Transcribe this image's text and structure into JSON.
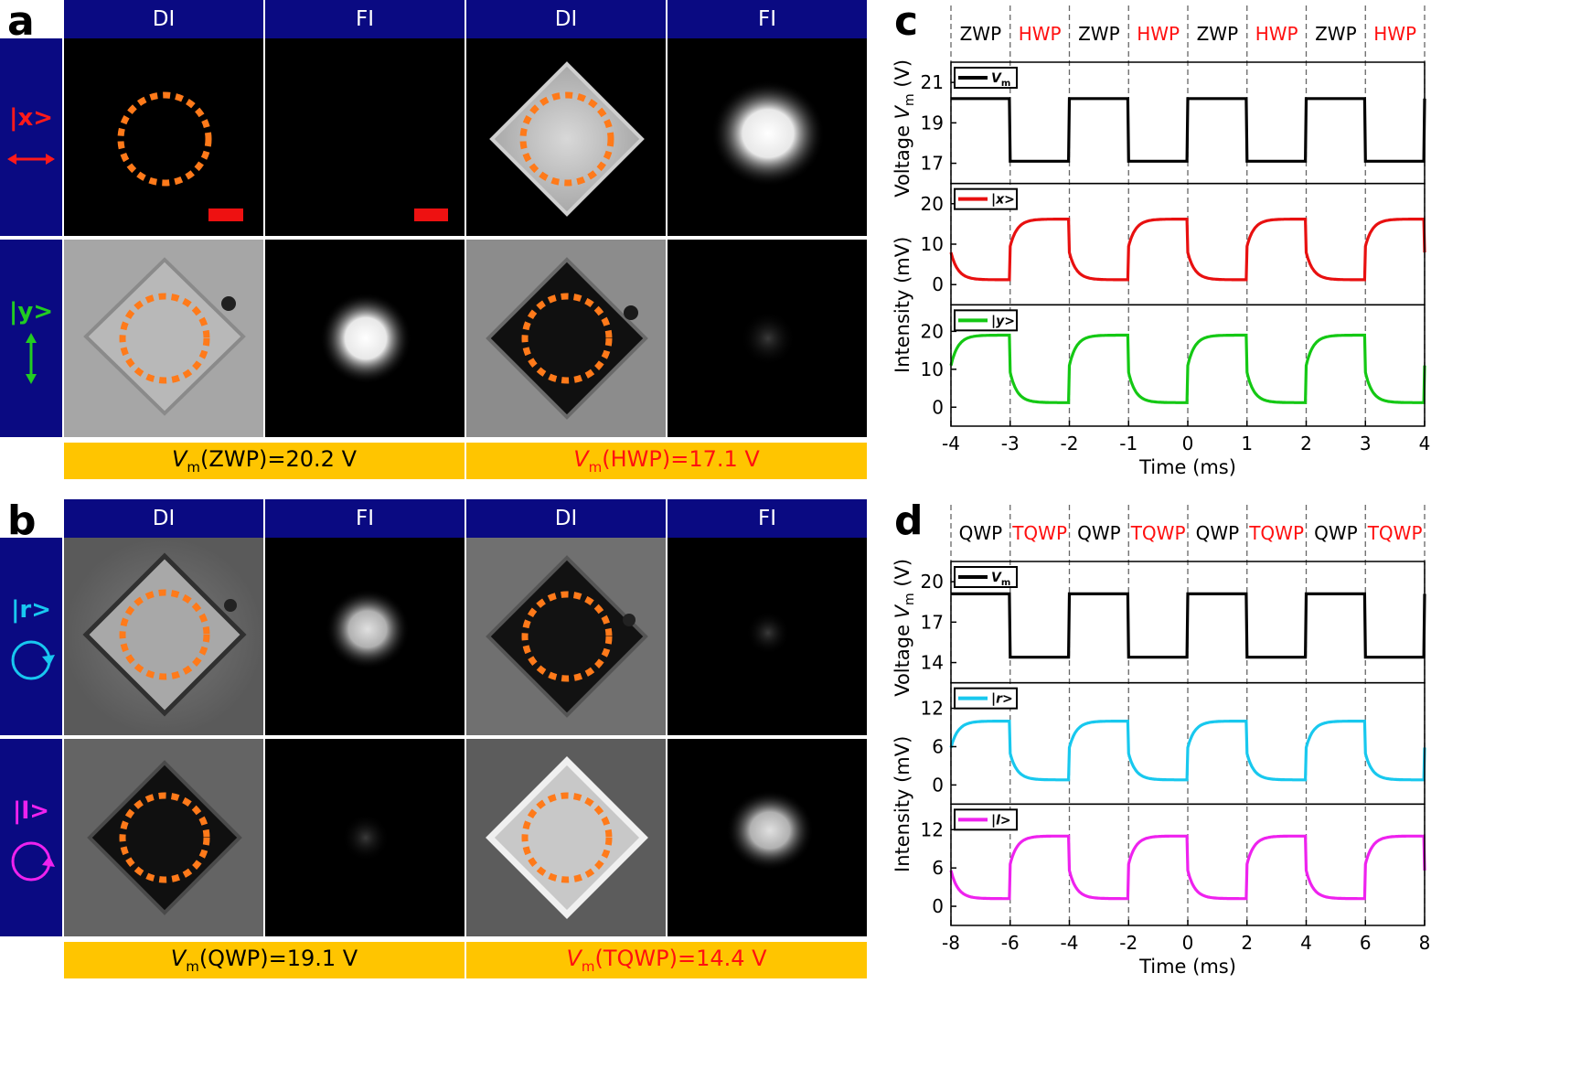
{
  "panels": {
    "a": {
      "letter": "a",
      "headers": [
        "DI",
        "FI",
        "DI",
        "FI"
      ],
      "rows": [
        {
          "label": "|x>",
          "color": "#ff1a1a"
        },
        {
          "label": "|y>",
          "color": "#22cc22"
        }
      ],
      "bars": [
        {
          "symbol": "V",
          "sub": "m",
          "text": "(ZWP)=20.2 V",
          "color": "#000000"
        },
        {
          "symbol": "V",
          "sub": "m",
          "text": "(HWP)=17.1 V",
          "color": "#ff1010"
        }
      ]
    },
    "b": {
      "letter": "b",
      "headers": [
        "DI",
        "FI",
        "DI",
        "FI"
      ],
      "rows": [
        {
          "label": "|r>",
          "color": "#18c8f0"
        },
        {
          "label": "|l>",
          "color": "#ee22ee"
        }
      ],
      "bars": [
        {
          "symbol": "V",
          "sub": "m",
          "text": "(QWP)=19.1 V",
          "color": "#000000"
        },
        {
          "symbol": "V",
          "sub": "m",
          "text": "(TQWP)=14.4 V",
          "color": "#ff1010"
        }
      ]
    },
    "c": {
      "letter": "c"
    },
    "d": {
      "letter": "d"
    }
  },
  "chart_data": [
    {
      "id": "c",
      "type": "line",
      "title": "",
      "xlabel": "Time (ms)",
      "ylabel_top": "Voltage V_m (V)",
      "ylabel_bottom": "Intensity (mV)",
      "xlim": [
        -4,
        4
      ],
      "xticks": [
        -4,
        -3,
        -2,
        -1,
        0,
        1,
        2,
        3,
        4
      ],
      "state_labels": [
        "ZWP",
        "HWP",
        "ZWP",
        "HWP",
        "ZWP",
        "HWP",
        "ZWP",
        "HWP"
      ],
      "state_colors": [
        "#000000",
        "#ff1010",
        "#000000",
        "#ff1010",
        "#000000",
        "#ff1010",
        "#000000",
        "#ff1010"
      ],
      "period_ms": 2,
      "series": [
        {
          "name": "V_m",
          "legend": "V",
          "legend_sub": "m",
          "color": "#000000",
          "ylim": [
            16,
            22
          ],
          "yticks": [
            17,
            19,
            21
          ],
          "high": 20.2,
          "low": 17.1,
          "kind": "square"
        },
        {
          "name": "|x>",
          "legend": "|x>",
          "color": "#e81010",
          "ylim": [
            -5,
            25
          ],
          "yticks": [
            0,
            10,
            20
          ],
          "high": 16.2,
          "low": 1.2,
          "first_state": "low",
          "kind": "exp"
        },
        {
          "name": "|y>",
          "legend": "|y>",
          "color": "#14c814",
          "ylim": [
            -5,
            27
          ],
          "yticks": [
            0,
            10,
            20
          ],
          "high": 19.0,
          "low": 1.2,
          "first_state": "high",
          "kind": "exp"
        }
      ]
    },
    {
      "id": "d",
      "type": "line",
      "title": "",
      "xlabel": "Time (ms)",
      "ylabel_top": "Voltage V_m (V)",
      "ylabel_bottom": "Intensity (mV)",
      "xlim": [
        -8,
        8
      ],
      "xticks": [
        -8,
        -6,
        -4,
        -2,
        0,
        2,
        4,
        6,
        8
      ],
      "state_labels": [
        "QWP",
        "TQWP",
        "QWP",
        "TQWP",
        "QWP",
        "TQWP",
        "QWP",
        "TQWP"
      ],
      "state_colors": [
        "#000000",
        "#ff1010",
        "#000000",
        "#ff1010",
        "#000000",
        "#ff1010",
        "#000000",
        "#ff1010"
      ],
      "period_ms": 4,
      "series": [
        {
          "name": "V_m",
          "legend": "V",
          "legend_sub": "m",
          "color": "#000000",
          "ylim": [
            12.5,
            21.5
          ],
          "yticks": [
            14,
            17,
            20
          ],
          "high": 19.1,
          "low": 14.4,
          "kind": "square"
        },
        {
          "name": "|r>",
          "legend": "|r>",
          "color": "#18c8ee",
          "ylim": [
            -3,
            16
          ],
          "yticks": [
            0,
            6,
            12
          ],
          "high": 10.0,
          "low": 0.8,
          "first_state": "high",
          "kind": "exp"
        },
        {
          "name": "|l>",
          "legend": "|l>",
          "color": "#ee22ee",
          "ylim": [
            -3,
            16
          ],
          "yticks": [
            0,
            6,
            12
          ],
          "high": 11.0,
          "low": 1.2,
          "first_state": "low",
          "kind": "exp"
        }
      ]
    }
  ]
}
